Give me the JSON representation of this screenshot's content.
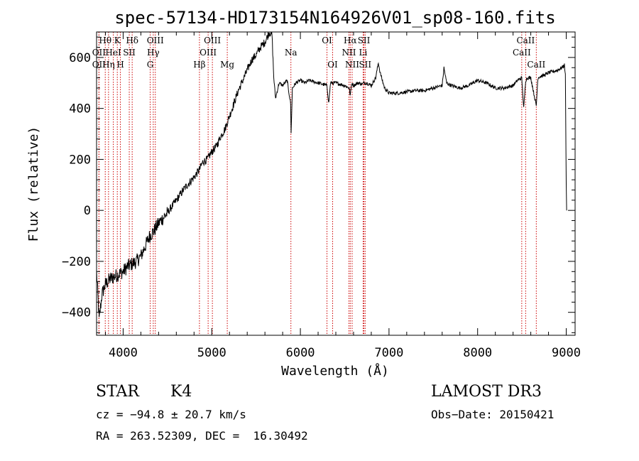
{
  "chart_data": {
    "type": "line",
    "title": "spec-57134-HD173154N164926V01_sp08-160.fits",
    "xlabel": "Wavelength (Å)",
    "ylabel": "Flux (relative)",
    "xlim": [
      3700,
      9100
    ],
    "ylim": [
      -490,
      700
    ],
    "x_ticks": [
      4000,
      5000,
      6000,
      7000,
      8000,
      9000
    ],
    "x_tick_labels": [
      "4000",
      "5000",
      "6000",
      "7000",
      "8000",
      "9000"
    ],
    "y_ticks": [
      -400,
      -200,
      0,
      200,
      400,
      600
    ],
    "y_tick_labels": [
      "−400",
      "−200",
      "0",
      "200",
      "400",
      "600"
    ],
    "grid": false,
    "series": [
      {
        "name": "spectrum",
        "x": [
          3700,
          3730,
          3760,
          3800,
          3850,
          3900,
          3950,
          4000,
          4050,
          4100,
          4150,
          4200,
          4250,
          4300,
          4350,
          4400,
          4500,
          4600,
          4700,
          4800,
          4861,
          4900,
          4950,
          5000,
          5050,
          5100,
          5150,
          5200,
          5250,
          5300,
          5350,
          5400,
          5450,
          5500,
          5550,
          5600,
          5650,
          5680,
          5700,
          5720,
          5740,
          5760,
          5800,
          5850,
          5890,
          5895,
          5910,
          5950,
          6000,
          6050,
          6100,
          6200,
          6300,
          6320,
          6340,
          6400,
          6450,
          6500,
          6550,
          6563,
          6580,
          6600,
          6650,
          6700,
          6717,
          6750,
          6800,
          6850,
          6880,
          6900,
          6950,
          7000,
          7100,
          7200,
          7300,
          7400,
          7500,
          7600,
          7620,
          7650,
          7700,
          7800,
          7900,
          8000,
          8100,
          8200,
          8300,
          8400,
          8450,
          8498,
          8520,
          8542,
          8560,
          8600,
          8662,
          8680,
          8700,
          8750,
          8800,
          8850,
          8900,
          8950,
          8980,
          8990,
          9000,
          9005
        ],
        "y": [
          -240,
          -430,
          -330,
          -290,
          -270,
          -260,
          -250,
          -240,
          -220,
          -210,
          -200,
          -180,
          -140,
          -100,
          -80,
          -50,
          -10,
          40,
          90,
          130,
          160,
          190,
          200,
          230,
          250,
          290,
          320,
          370,
          420,
          470,
          510,
          550,
          590,
          610,
          640,
          660,
          700,
          690,
          520,
          440,
          470,
          500,
          490,
          510,
          420,
          300,
          480,
          500,
          510,
          500,
          510,
          500,
          490,
          420,
          500,
          500,
          495,
          490,
          480,
          450,
          500,
          490,
          500,
          495,
          500,
          500,
          490,
          520,
          580,
          540,
          480,
          460,
          460,
          465,
          470,
          470,
          480,
          490,
          560,
          500,
          490,
          480,
          490,
          510,
          500,
          480,
          480,
          490,
          510,
          520,
          400,
          510,
          520,
          520,
          410,
          520,
          525,
          530,
          540,
          545,
          550,
          560,
          570,
          530,
          100,
          0
        ]
      }
    ],
    "spectral_lines": [
      {
        "label": "Hθ",
        "x": 3798,
        "row": 1
      },
      {
        "label": "K",
        "x": 3934,
        "row": 1
      },
      {
        "label": "Hδ",
        "x": 4102,
        "row": 1
      },
      {
        "label": "OII",
        "x": 3727,
        "row": 2
      },
      {
        "label": "HeI",
        "x": 3889,
        "row": 2
      },
      {
        "label": "SII",
        "x": 4069,
        "row": 2
      },
      {
        "label": "OII",
        "x": 3727,
        "row": 3
      },
      {
        "label": "Hη",
        "x": 3835,
        "row": 3
      },
      {
        "label": "H",
        "x": 3969,
        "row": 3
      },
      {
        "label": "OIII",
        "x": 4363,
        "row": 1
      },
      {
        "label": "Hγ",
        "x": 4340,
        "row": 2
      },
      {
        "label": "G",
        "x": 4305,
        "row": 3
      },
      {
        "label": "OIII",
        "x": 5007,
        "row": 1
      },
      {
        "label": "OIII",
        "x": 4959,
        "row": 2
      },
      {
        "label": "Hβ",
        "x": 4861,
        "row": 3
      },
      {
        "label": "Mg",
        "x": 5175,
        "row": 3
      },
      {
        "label": "Na",
        "x": 5893,
        "row": 2
      },
      {
        "label": "OI",
        "x": 6300,
        "row": 1
      },
      {
        "label": "OI",
        "x": 6364,
        "row": 3
      },
      {
        "label": "Hα",
        "x": 6563,
        "row": 1
      },
      {
        "label": "SII",
        "x": 6717,
        "row": 1
      },
      {
        "label": "NII",
        "x": 6548,
        "row": 2
      },
      {
        "label": "Li",
        "x": 6708,
        "row": 2
      },
      {
        "label": "NII",
        "x": 6584,
        "row": 3
      },
      {
        "label": "SII",
        "x": 6731,
        "row": 3
      },
      {
        "label": "CaII",
        "x": 8542,
        "row": 1
      },
      {
        "label": "CaII",
        "x": 8498,
        "row": 2
      },
      {
        "label": "CaII",
        "x": 8662,
        "row": 3
      }
    ]
  },
  "info": {
    "object_class": "STAR",
    "subclass": "K4",
    "survey": "LAMOST DR3",
    "cz": "cz = −94.8 ± 20.7 km/s",
    "obs_date": "Obs−Date: 20150421",
    "coords": "RA = 263.52309, DEC =  16.30492"
  },
  "colors": {
    "spectrum": "#000000",
    "line_markers": "#cc0000",
    "axes": "#000000"
  }
}
